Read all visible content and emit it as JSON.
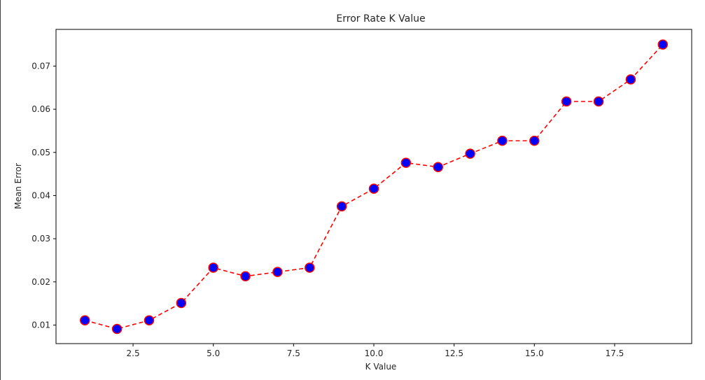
{
  "chart_data": {
    "type": "line",
    "title": "Error Rate K Value",
    "xlabel": "K Value",
    "ylabel": "Mean Error",
    "xlim": [
      0.1,
      19.9
    ],
    "ylim": [
      0.0057,
      0.0785
    ],
    "xticks": [
      2.5,
      5.0,
      7.5,
      10.0,
      12.5,
      15.0,
      17.5
    ],
    "xtick_labels": [
      "2.5",
      "5.0",
      "7.5",
      "10.0",
      "12.5",
      "15.0",
      "17.5"
    ],
    "yticks": [
      0.01,
      0.02,
      0.03,
      0.04,
      0.05,
      0.06,
      0.07
    ],
    "ytick_labels": [
      "0.01",
      "0.02",
      "0.03",
      "0.04",
      "0.05",
      "0.06",
      "0.07"
    ],
    "grid": false,
    "series": [
      {
        "line_color": "#ff0000",
        "line_style": "dashed",
        "marker_fill": "#0000ff",
        "marker_edge": "#ff0000",
        "x": [
          1,
          2,
          3,
          4,
          5,
          6,
          7,
          8,
          9,
          10,
          11,
          12,
          13,
          14,
          15,
          16,
          17,
          18,
          19
        ],
        "y": [
          0.0111,
          0.0091,
          0.0111,
          0.0151,
          0.0233,
          0.0213,
          0.0223,
          0.0233,
          0.0375,
          0.0416,
          0.0476,
          0.0466,
          0.0497,
          0.0527,
          0.0527,
          0.0618,
          0.0618,
          0.0669,
          0.075
        ]
      }
    ]
  }
}
